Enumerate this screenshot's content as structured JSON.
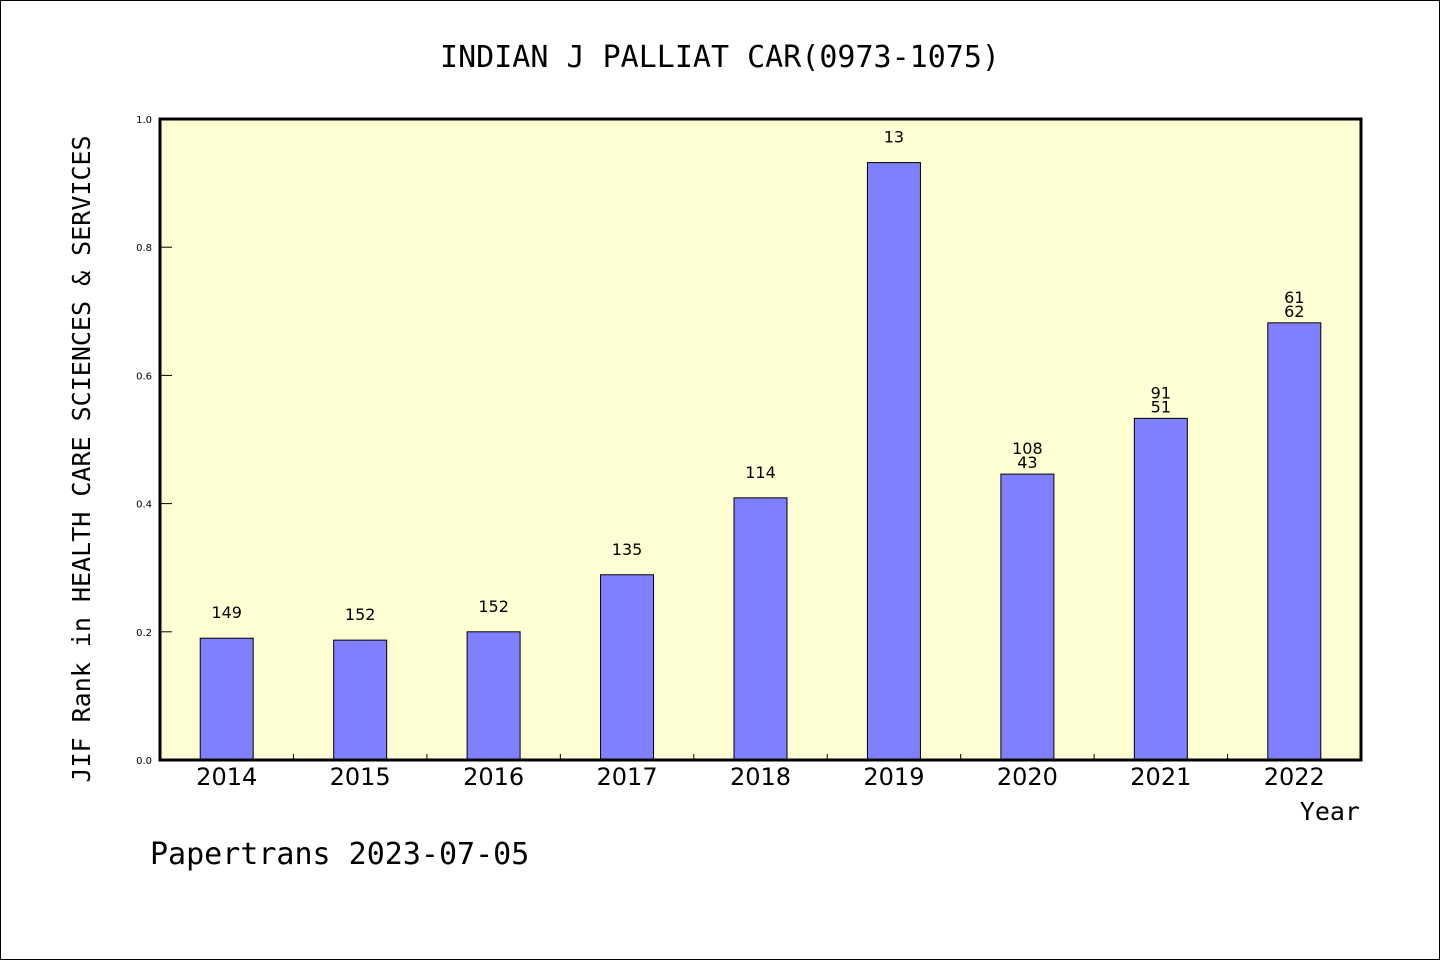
{
  "chart_data": {
    "type": "bar",
    "title": "INDIAN J PALLIAT CAR(0973-1075)",
    "xlabel": "Year",
    "ylabel": "JIF Rank in HEALTH CARE SCIENCES & SERVICES",
    "ylim": [
      0,
      1.0
    ],
    "yticks": [
      "0.0",
      "0.2",
      "0.4",
      "0.6",
      "0.8",
      "1.0"
    ],
    "grid": false,
    "categories": [
      "2014",
      "2015",
      "2016",
      "2017",
      "2018",
      "2019",
      "2020",
      "2021",
      "2022"
    ],
    "values": [
      0.19,
      0.187,
      0.2,
      0.289,
      0.409,
      0.932,
      0.446,
      0.533,
      0.682
    ],
    "data_labels": [
      [
        "149"
      ],
      [
        "152"
      ],
      [
        "152"
      ],
      [
        "135"
      ],
      [
        "114"
      ],
      [
        "13"
      ],
      [
        "108",
        "43"
      ],
      [
        "91",
        "51"
      ],
      [
        "61",
        "62"
      ]
    ],
    "colors": {
      "bar": "#8080ff",
      "plot_background": "#ffffd4"
    }
  },
  "footer": "Papertrans 2023-07-05"
}
